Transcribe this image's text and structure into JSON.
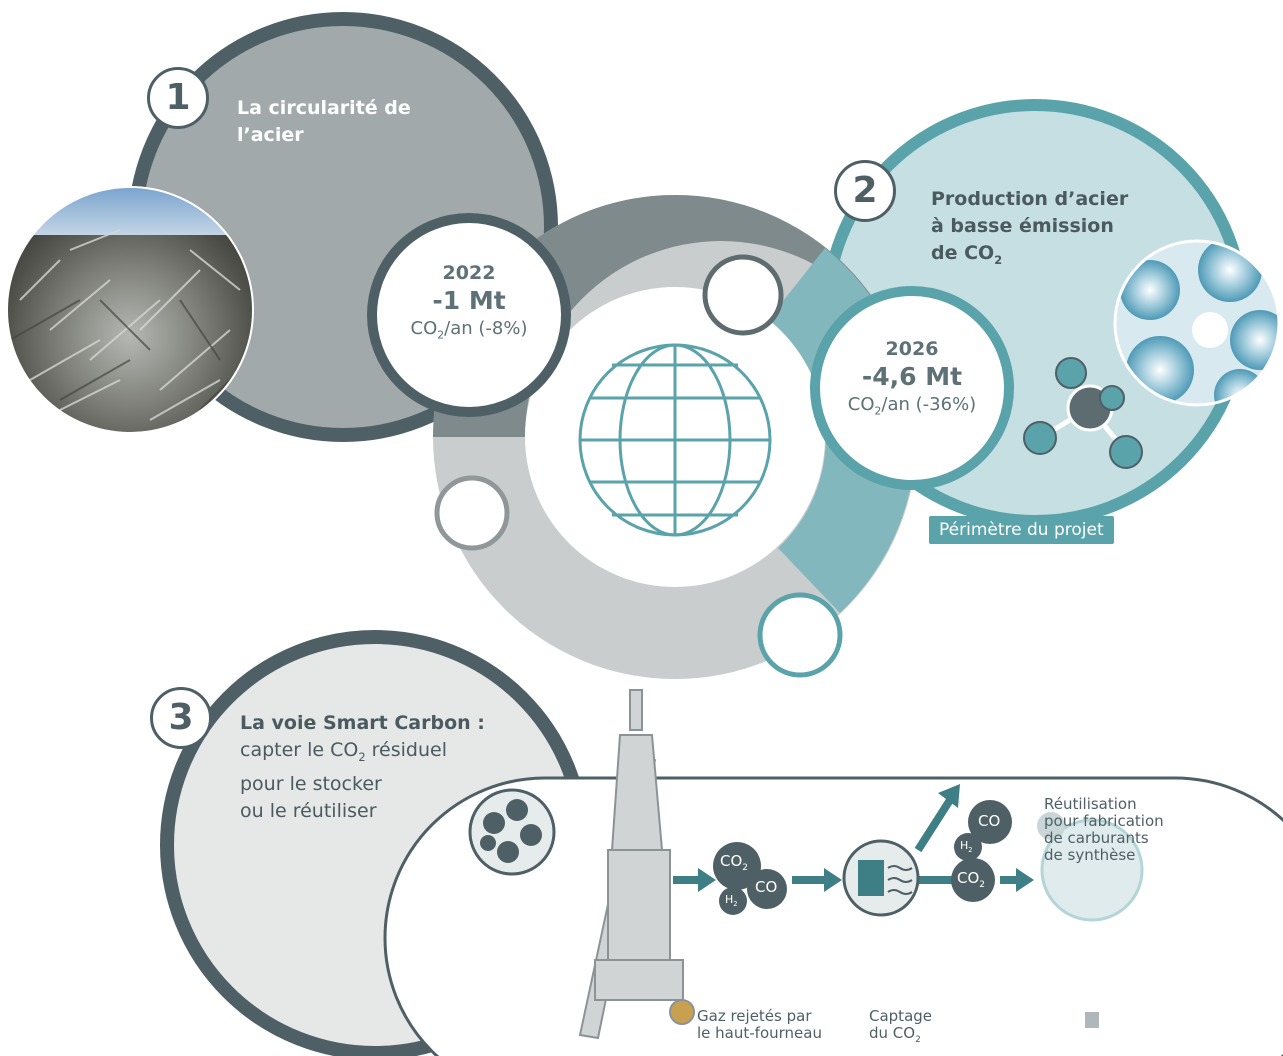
{
  "step1": {
    "number": "1",
    "title_line1": "La circularité de",
    "title_line2": "l’acier",
    "year": "2022",
    "value": "-1 Mt",
    "unit_pre": "CO",
    "unit_sub": "2",
    "unit_post": "/an (-8%)"
  },
  "step2": {
    "number": "2",
    "title_line1": "Production d’acier",
    "title_line2": "à basse émission",
    "title_line3_pre": "de CO",
    "title_line3_sub": "2",
    "year": "2026",
    "value": "-4,6 Mt",
    "unit_pre": "CO",
    "unit_sub": "2",
    "unit_post": "/an (-36%)",
    "project_tag": "Périmètre du projet"
  },
  "step3": {
    "number": "3",
    "title": "La voie Smart Carbon :",
    "line1_pre": "capter le CO",
    "line1_sub": "2",
    "line1_post": " résiduel",
    "line2": "pour le stocker",
    "line3": "ou le réutiliser"
  },
  "process": {
    "reuse": [
      "Réutilisation",
      "pour fabrication",
      "de carburants",
      "de synthèse"
    ],
    "gas_label": [
      "Gaz rejetés par",
      "le haut-fourneau"
    ],
    "capture_label_1": "Captage",
    "capture_label_2_pre": "du CO",
    "capture_label_2_sub": "2",
    "co2": "CO",
    "co2_sub": "2",
    "co": "CO",
    "h2": "H",
    "h2_sub": "2"
  },
  "colors": {
    "dark_gray": "#4e6066",
    "mid_gray": "#a1a9aa",
    "light_gray": "#e6e8e8",
    "teal": "#5aa3aa",
    "light_teal": "#c6dfe2"
  },
  "icons": [
    "globe-icon",
    "molecule-icon",
    "scrap-metal-photo",
    "crystal-photo",
    "blast-furnace-icon",
    "co2-bubbles-icon",
    "storage-icon"
  ]
}
